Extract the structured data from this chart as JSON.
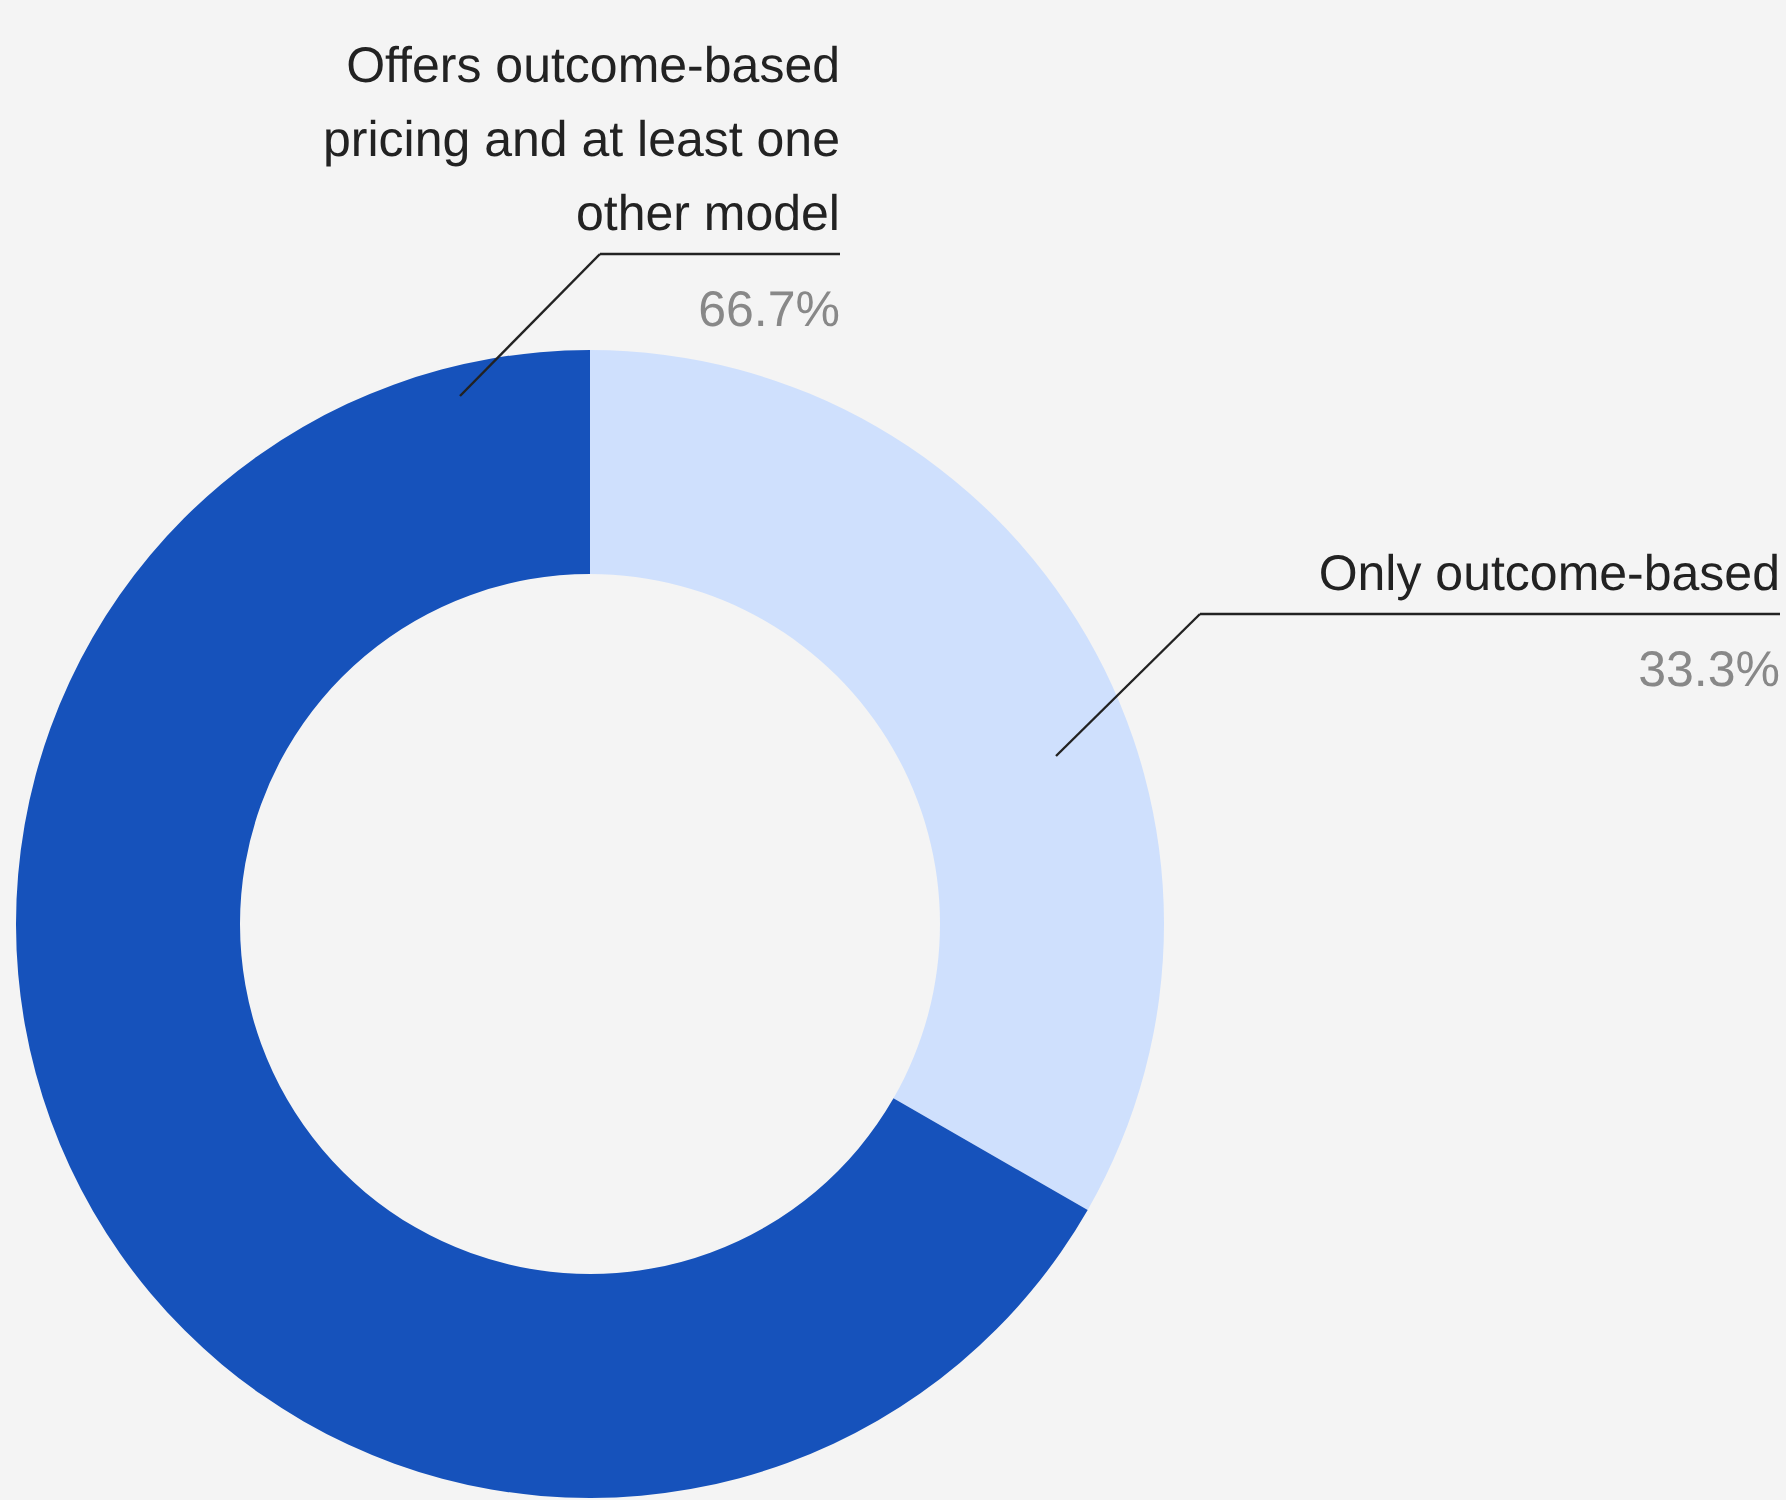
{
  "chart_data": {
    "type": "donut",
    "categories": [
      "Only outcome-based",
      "Offers outcome-based pricing and at least one other model"
    ],
    "values": [
      33.3,
      66.7
    ],
    "colors": [
      "#cfe0fd",
      "#1652bb"
    ],
    "value_labels": [
      "33.3%",
      "66.7%"
    ],
    "legend": false
  }
}
